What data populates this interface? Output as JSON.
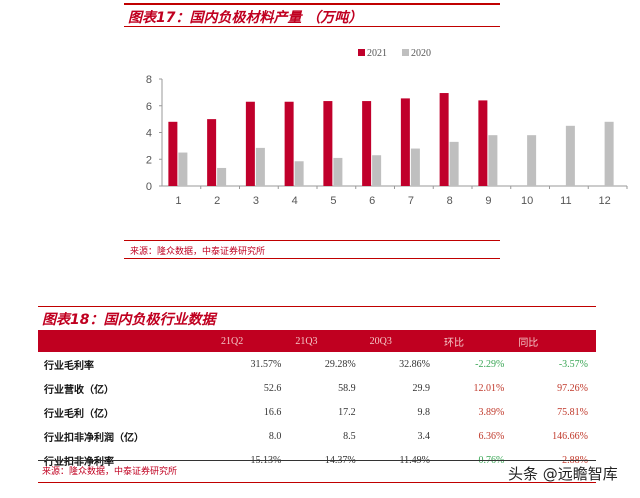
{
  "chart_section": {
    "title": "图表17：国内负极材料产量 （万吨）",
    "source": "来源：隆众数据，中泰证券研究所"
  },
  "chart_data": {
    "type": "bar",
    "title": "图表17：国内负极材料产量 （万吨）",
    "categories": [
      "1",
      "2",
      "3",
      "4",
      "5",
      "6",
      "7",
      "8",
      "9",
      "10",
      "11",
      "12"
    ],
    "series": [
      {
        "name": "2021",
        "color": "#c0002b",
        "values": [
          4.8,
          5.0,
          6.3,
          6.3,
          6.35,
          6.35,
          6.55,
          6.95,
          6.4,
          null,
          null,
          null
        ]
      },
      {
        "name": "2020",
        "color": "#bfbfbf",
        "values": [
          2.5,
          1.35,
          2.85,
          1.85,
          2.1,
          2.3,
          2.8,
          3.3,
          3.8,
          3.8,
          4.5,
          4.8
        ]
      }
    ],
    "yticks": [
      "0",
      "2",
      "4",
      "6",
      "8"
    ],
    "ylim": [
      0,
      8
    ],
    "legend": "top",
    "grid": false
  },
  "table_section": {
    "title": "图表18：国内负极行业数据",
    "headers": [
      "",
      "21Q2",
      "21Q3",
      "20Q3",
      "环比",
      "同比"
    ],
    "rows": [
      [
        "行业毛利率",
        "31.57%",
        "29.28%",
        "32.86%",
        "-2.29%",
        "-3.57%"
      ],
      [
        "行业营收（亿）",
        "52.6",
        "58.9",
        "29.9",
        "12.01%",
        "97.26%"
      ],
      [
        "行业毛利（亿）",
        "16.6",
        "17.2",
        "9.8",
        "3.89%",
        "75.81%"
      ],
      [
        "行业扣非净利润（亿）",
        "8.0",
        "8.5",
        "3.4",
        "6.36%",
        "146.66%"
      ],
      [
        "行业扣非净利率",
        "15.13%",
        "14.37%",
        "11.49%",
        "-0.76%",
        "2.88%"
      ]
    ],
    "source": "来源：隆众数据，中泰证券研究所"
  },
  "watermark": "头条 @远瞻智库"
}
